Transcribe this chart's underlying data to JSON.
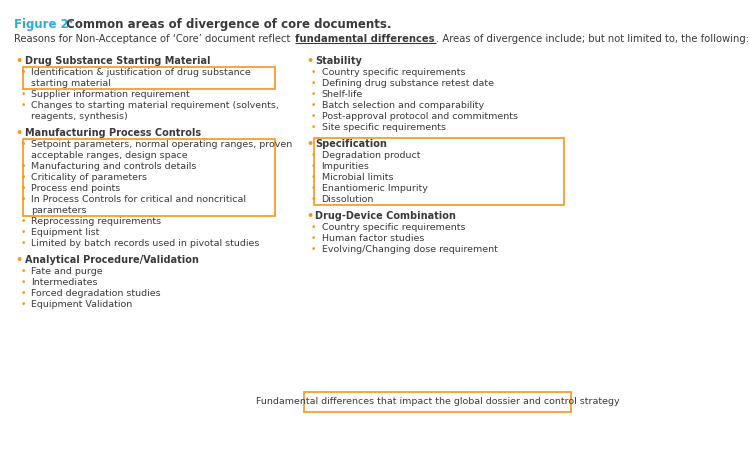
{
  "title_blue": "Figure 2:",
  "title_rest": " Common areas of divergence of core documents.",
  "intro_text": "Reasons for Non-Acceptance of ‘Core’ document reflect ",
  "intro_bold": "fundamental differences",
  "intro_end": ". Areas of divergence include; but not limited to, the following:",
  "intro_line2": "following:",
  "bg_color": "#ffffff",
  "text_color": "#3a3a3a",
  "title_color": "#29abe2",
  "orange_color": "#f7941d",
  "bullet": "•",
  "left_sections": [
    {
      "header": "Drug Substance Starting Material",
      "header_boxed": false,
      "items": [
        {
          "text": "Identification & justification of drug substance starting material",
          "boxed": true,
          "wrap": true
        },
        {
          "text": "Supplier information requirement",
          "boxed": false,
          "wrap": false
        },
        {
          "text": "Changes to starting material requirement (solvents, reagents, synthesis)",
          "boxed": false,
          "wrap": true
        }
      ]
    },
    {
      "header": "Manufacturing Process Controls",
      "header_boxed": false,
      "items": [
        {
          "text": "Setpoint parameters, normal operating ranges, proven acceptable ranges, design space",
          "boxed": true,
          "wrap": true
        },
        {
          "text": "Manufacturing and controls details",
          "boxed": true,
          "wrap": false
        },
        {
          "text": "Criticality of parameters",
          "boxed": true,
          "wrap": false
        },
        {
          "text": "Process end points",
          "boxed": true,
          "wrap": false
        },
        {
          "text": "In Process Controls for critical and noncritical parameters",
          "boxed": true,
          "wrap": false
        },
        {
          "text": "Reprocessing requirements",
          "boxed": false,
          "wrap": false
        },
        {
          "text": "Equipment list",
          "boxed": false,
          "wrap": false
        },
        {
          "text": "Limited by batch records used in pivotal studies",
          "boxed": false,
          "wrap": false
        }
      ]
    },
    {
      "header": "Analytical Procedure/Validation",
      "header_boxed": false,
      "items": [
        {
          "text": "Fate and purge",
          "boxed": false,
          "wrap": false
        },
        {
          "text": "Intermediates",
          "boxed": false,
          "wrap": false
        },
        {
          "text": "Forced degradation studies",
          "boxed": false,
          "wrap": false
        },
        {
          "text": "Equipment Validation",
          "boxed": false,
          "wrap": false
        }
      ]
    }
  ],
  "right_sections": [
    {
      "header": "Stability",
      "header_boxed": false,
      "items": [
        {
          "text": "Country specific requirements",
          "boxed": false,
          "wrap": false
        },
        {
          "text": "Defining drug substance retest date",
          "boxed": false,
          "wrap": false
        },
        {
          "text": "Shelf-life",
          "boxed": false,
          "wrap": false
        },
        {
          "text": "Batch selection and comparability",
          "boxed": false,
          "wrap": false
        },
        {
          "text": "Post-approval protocol and commitments",
          "boxed": false,
          "wrap": false
        },
        {
          "text": "Site specific requirements",
          "boxed": false,
          "wrap": false
        }
      ]
    },
    {
      "header": "Specification",
      "header_boxed": true,
      "items": [
        {
          "text": "Degradation product",
          "boxed": true,
          "wrap": false
        },
        {
          "text": "Impurities",
          "boxed": true,
          "wrap": false
        },
        {
          "text": "Microbial limits",
          "boxed": true,
          "wrap": false
        },
        {
          "text": "Enantiomeric Impurity",
          "boxed": true,
          "wrap": false
        },
        {
          "text": "Dissolution",
          "boxed": true,
          "wrap": false
        }
      ]
    },
    {
      "header": "Drug-Device Combination",
      "header_boxed": false,
      "items": [
        {
          "text": "Country specific requirements",
          "boxed": false,
          "wrap": false
        },
        {
          "text": "Human factor studies",
          "boxed": false,
          "wrap": false
        },
        {
          "text": "Evolving/Changing dose requirement",
          "boxed": false,
          "wrap": false
        }
      ]
    }
  ],
  "footer_box_text": "Fundamental differences that impact the global dossier and control strategy"
}
